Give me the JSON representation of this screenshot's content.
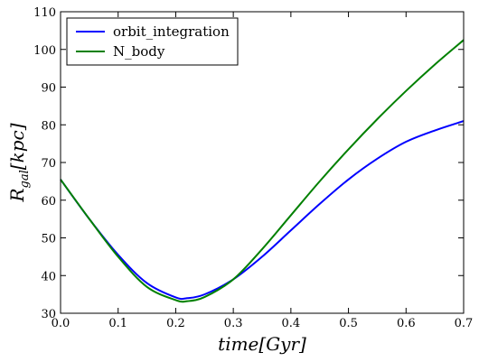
{
  "chart_data": {
    "type": "line",
    "title": "",
    "xlabel": "time[Gyr]",
    "ylabel": "R_gal[kpc]",
    "ylabel_main": "R",
    "ylabel_sub": "gal",
    "ylabel_rest": "[kpc]",
    "xlim": [
      0.0,
      0.7
    ],
    "ylim": [
      30,
      110
    ],
    "x_ticks": [
      "0.0",
      "0.1",
      "0.2",
      "0.3",
      "0.4",
      "0.5",
      "0.6",
      "0.7"
    ],
    "y_ticks": [
      "30",
      "40",
      "50",
      "60",
      "70",
      "80",
      "90",
      "100",
      "110"
    ],
    "grid": false,
    "legend_position": "top-left",
    "x": [
      0.0,
      0.05,
      0.1,
      0.15,
      0.2,
      0.22,
      0.25,
      0.3,
      0.35,
      0.4,
      0.45,
      0.5,
      0.55,
      0.6,
      0.65,
      0.7
    ],
    "series": [
      {
        "name": "orbit_integration",
        "color": "#0000ff",
        "values": [
          65.5,
          55.0,
          45.5,
          38.0,
          34.2,
          34.0,
          35.0,
          39.0,
          45.0,
          52.0,
          59.0,
          65.5,
          71.0,
          75.5,
          78.5,
          81.0
        ]
      },
      {
        "name": "N_body",
        "color": "#008000",
        "values": [
          65.5,
          55.0,
          45.0,
          37.0,
          33.5,
          33.2,
          34.3,
          39.0,
          47.0,
          56.0,
          65.0,
          73.5,
          81.5,
          89.0,
          96.0,
          102.5
        ]
      }
    ]
  }
}
